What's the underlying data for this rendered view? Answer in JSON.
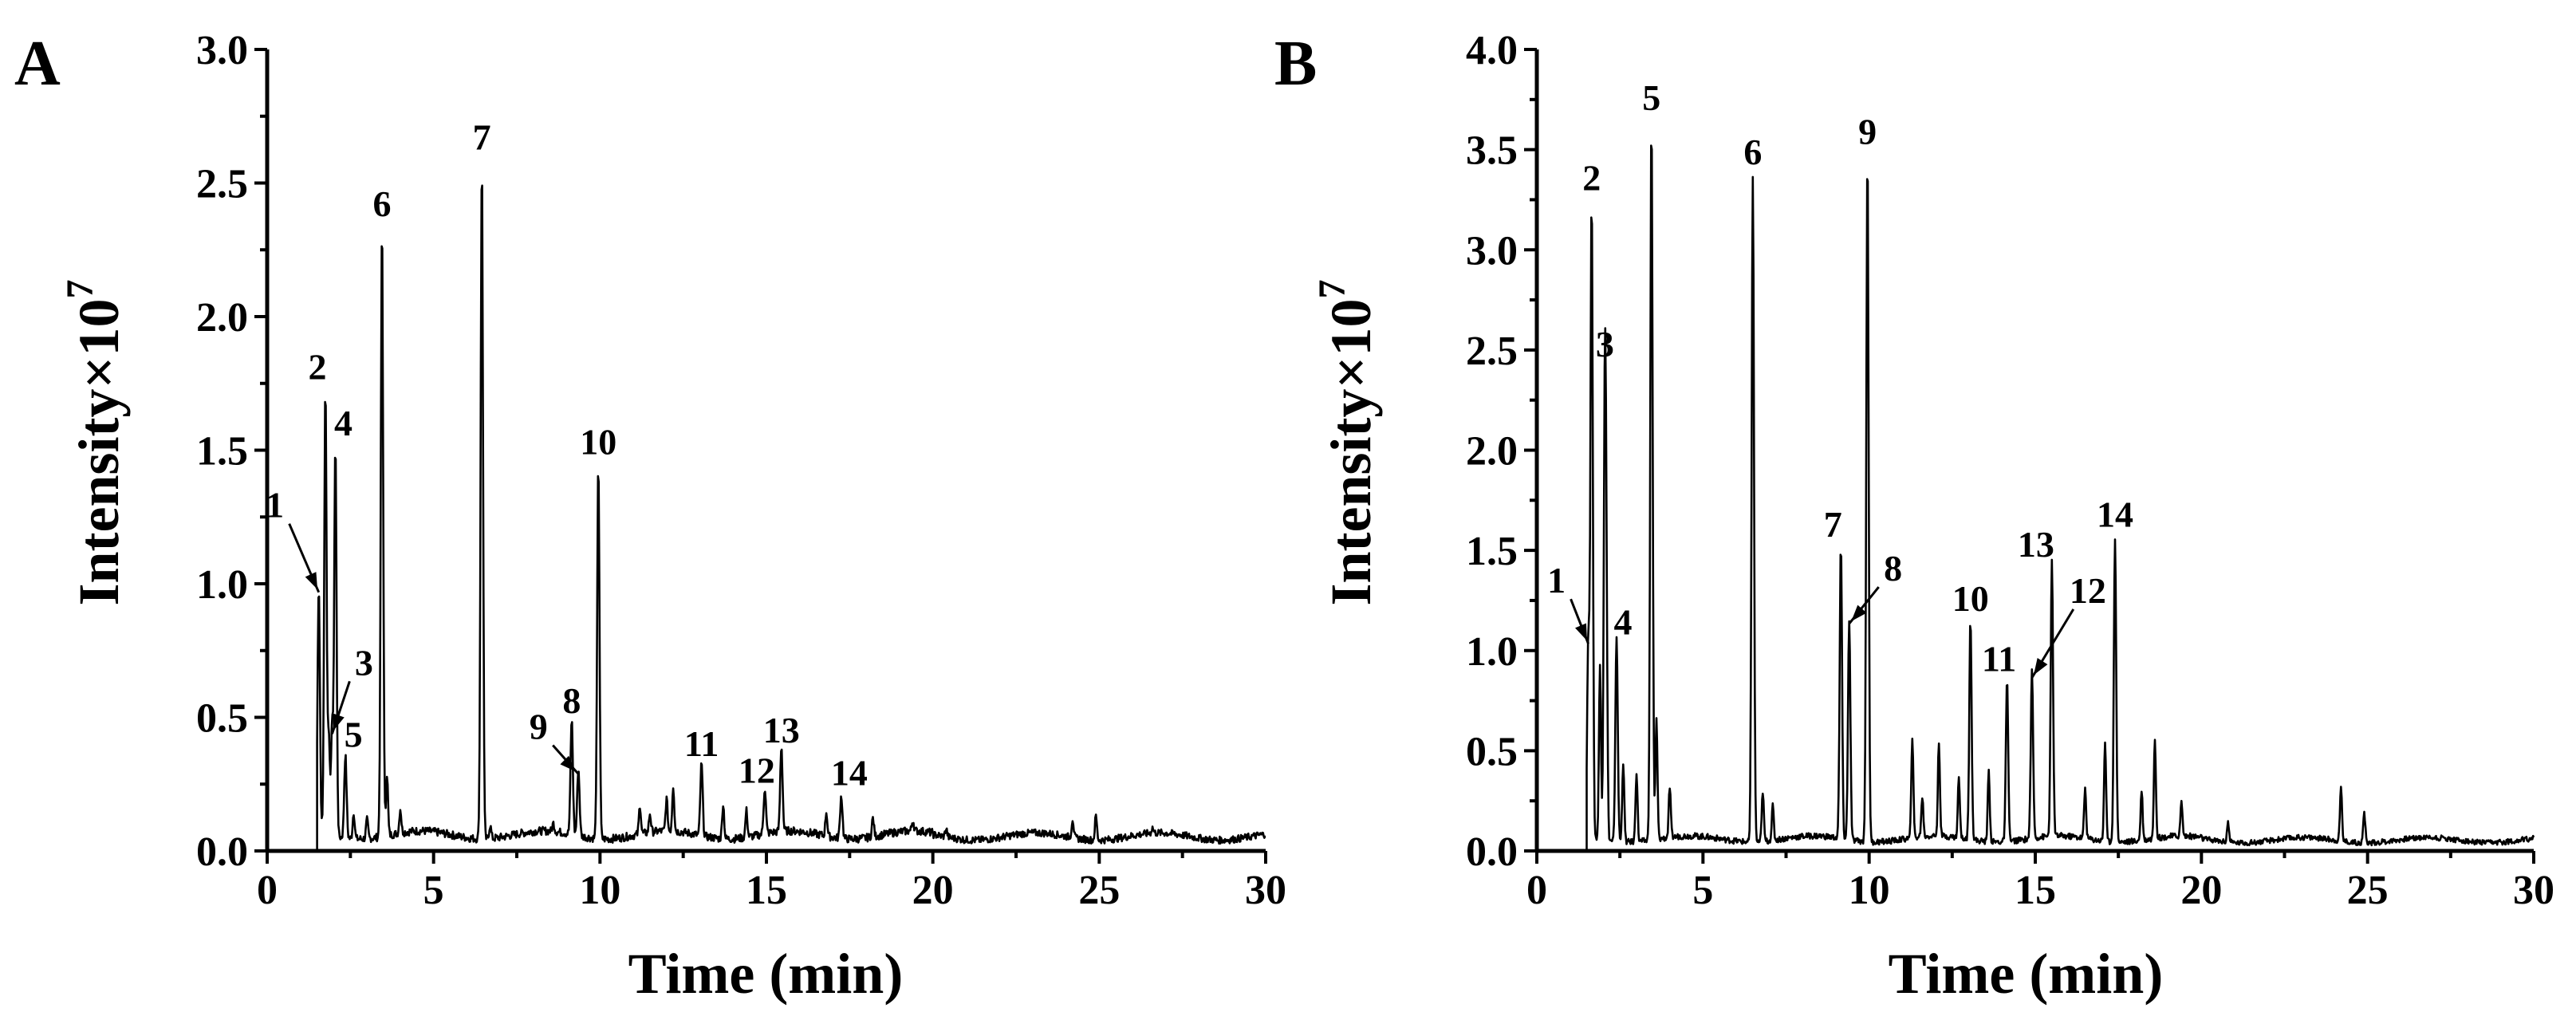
{
  "chart_data": [
    {
      "panel_label": "A",
      "type": "line",
      "xlabel": "Time (min)",
      "ylabel": "Intensity×10",
      "ylabel_exponent": "7",
      "xlim": [
        0,
        30
      ],
      "ylim": [
        0,
        3.0
      ],
      "xticks": [
        0,
        5,
        10,
        15,
        20,
        25,
        30
      ],
      "yticks": [
        0.0,
        0.5,
        1.0,
        1.5,
        2.0,
        2.5,
        3.0
      ],
      "ytick_labels": [
        "0.0",
        "0.5",
        "1.0",
        "1.5",
        "2.0",
        "2.5",
        "3.0"
      ],
      "baseline": 0.05,
      "peaks": [
        {
          "label": "1",
          "x": 1.55,
          "y": 0.98
        },
        {
          "label": "2",
          "x": 1.75,
          "y": 1.73
        },
        {
          "label": "3",
          "x": 1.95,
          "y": 0.45
        },
        {
          "label": "4",
          "x": 2.05,
          "y": 1.52
        },
        {
          "label": "5",
          "x": 2.35,
          "y": 0.36
        },
        {
          "label": "6",
          "x": 3.45,
          "y": 2.34
        },
        {
          "label": "7",
          "x": 6.45,
          "y": 2.59
        },
        {
          "label": "8",
          "x": 9.15,
          "y": 0.48
        },
        {
          "label": "9",
          "x": 9.35,
          "y": 0.3
        },
        {
          "label": "10",
          "x": 9.95,
          "y": 1.45
        },
        {
          "label": "11",
          "x": 13.05,
          "y": 0.32
        },
        {
          "label": "12",
          "x": 14.95,
          "y": 0.22
        },
        {
          "label": "13",
          "x": 15.45,
          "y": 0.37
        },
        {
          "label": "14",
          "x": 17.25,
          "y": 0.21
        }
      ],
      "minor_peaks": [
        [
          1.85,
          0.42
        ],
        [
          2.6,
          0.15
        ],
        [
          3.0,
          0.12
        ],
        [
          3.6,
          0.28
        ],
        [
          4.0,
          0.14
        ],
        [
          6.7,
          0.1
        ],
        [
          8.6,
          0.08
        ],
        [
          11.2,
          0.16
        ],
        [
          11.5,
          0.12
        ],
        [
          12.0,
          0.17
        ],
        [
          12.2,
          0.22
        ],
        [
          13.7,
          0.18
        ],
        [
          14.4,
          0.15
        ],
        [
          16.8,
          0.14
        ],
        [
          18.2,
          0.12
        ],
        [
          19.4,
          0.09
        ],
        [
          20.4,
          0.08
        ],
        [
          24.2,
          0.12
        ],
        [
          24.9,
          0.14
        ],
        [
          26.6,
          0.07
        ]
      ]
    },
    {
      "panel_label": "B",
      "type": "line",
      "xlabel": "Time (min)",
      "ylabel": "Intensity×10",
      "ylabel_exponent": "7",
      "xlim": [
        0,
        30
      ],
      "ylim": [
        0,
        4.0
      ],
      "xticks": [
        0,
        5,
        10,
        15,
        20,
        25,
        30
      ],
      "yticks": [
        0.0,
        0.5,
        1.0,
        1.5,
        2.0,
        2.5,
        3.0,
        3.5,
        4.0
      ],
      "ytick_labels": [
        "0.0",
        "0.5",
        "1.0",
        "1.5",
        "2.0",
        "2.5",
        "3.0",
        "3.5",
        "4.0"
      ],
      "baseline": 0.05,
      "peaks": [
        {
          "label": "1",
          "x": 1.55,
          "y": 1.05
        },
        {
          "label": "2",
          "x": 1.65,
          "y": 3.25
        },
        {
          "label": "3",
          "x": 2.05,
          "y": 2.42
        },
        {
          "label": "4",
          "x": 2.4,
          "y": 1.08
        },
        {
          "label": "5",
          "x": 3.45,
          "y": 3.65
        },
        {
          "label": "6",
          "x": 6.5,
          "y": 3.38
        },
        {
          "label": "7",
          "x": 9.15,
          "y": 1.52
        },
        {
          "label": "8",
          "x": 9.4,
          "y": 1.15
        },
        {
          "label": "9",
          "x": 9.95,
          "y": 3.48
        },
        {
          "label": "10",
          "x": 13.05,
          "y": 1.15
        },
        {
          "label": "11",
          "x": 14.15,
          "y": 0.85
        },
        {
          "label": "12",
          "x": 14.9,
          "y": 0.88
        },
        {
          "label": "13",
          "x": 15.5,
          "y": 1.42
        },
        {
          "label": "14",
          "x": 17.4,
          "y": 1.57
        }
      ],
      "minor_peaks": [
        [
          1.9,
          0.92
        ],
        [
          2.1,
          0.75
        ],
        [
          2.6,
          0.45
        ],
        [
          3.0,
          0.4
        ],
        [
          3.6,
          0.65
        ],
        [
          4.0,
          0.3
        ],
        [
          6.8,
          0.3
        ],
        [
          7.1,
          0.22
        ],
        [
          11.3,
          0.56
        ],
        [
          11.6,
          0.25
        ],
        [
          12.1,
          0.52
        ],
        [
          12.7,
          0.35
        ],
        [
          13.6,
          0.4
        ],
        [
          16.5,
          0.3
        ],
        [
          17.1,
          0.55
        ],
        [
          18.2,
          0.3
        ],
        [
          18.6,
          0.55
        ],
        [
          19.4,
          0.22
        ],
        [
          20.8,
          0.15
        ],
        [
          24.2,
          0.32
        ],
        [
          24.9,
          0.2
        ]
      ]
    }
  ]
}
